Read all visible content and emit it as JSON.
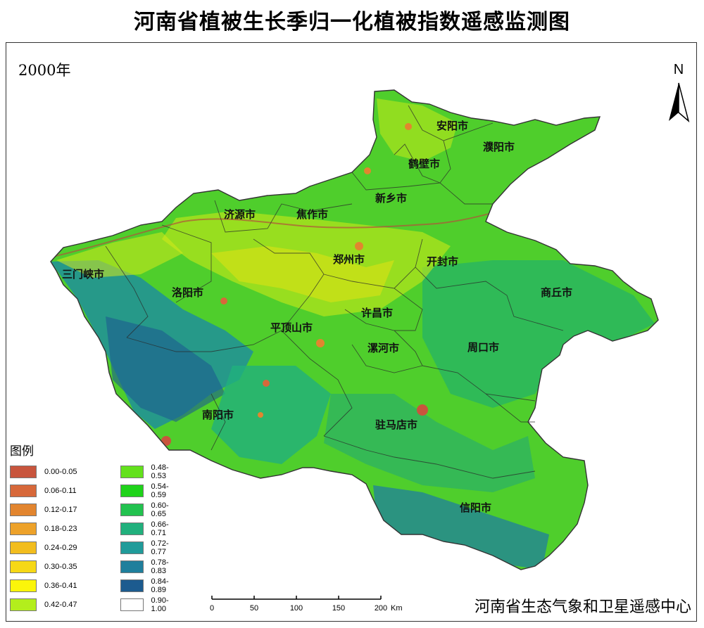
{
  "title": "河南省植被生长季归一化植被指数遥感监测图",
  "year_label": "2000年",
  "north_label": "N",
  "credit": "河南省生态气象和卫星遥感中心",
  "legend": {
    "title": "图例",
    "items": [
      {
        "label": "0.00-0.05",
        "color": "#c8553d"
      },
      {
        "label": "0.06-0.11",
        "color": "#d7683a"
      },
      {
        "label": "0.12-0.17",
        "color": "#e2852f"
      },
      {
        "label": "0.18-0.23",
        "color": "#eda22a"
      },
      {
        "label": "0.24-0.29",
        "color": "#f2bd1e"
      },
      {
        "label": "0.30-0.35",
        "color": "#f6d816"
      },
      {
        "label": "0.36-0.41",
        "color": "#fbf50a"
      },
      {
        "label": "0.42-0.47",
        "color": "#b3ee1c"
      },
      {
        "label": "0.48-0.53",
        "color": "#63e11c"
      },
      {
        "label": "0.54-0.59",
        "color": "#1fd31a"
      },
      {
        "label": "0.60-0.65",
        "color": "#22c24f"
      },
      {
        "label": "0.66-0.71",
        "color": "#21b07d"
      },
      {
        "label": "0.72-0.77",
        "color": "#209b9a"
      },
      {
        "label": "0.78-0.83",
        "color": "#1f7f9c"
      },
      {
        "label": "0.84-0.89",
        "color": "#1c5b8f"
      },
      {
        "label": "0.90-1.00",
        "color": "#ffffff"
      }
    ]
  },
  "scale": {
    "ticks": [
      "0",
      "50",
      "100",
      "150",
      "200"
    ],
    "unit": "Km"
  },
  "cities": [
    {
      "name": "安阳市",
      "id": "anyang"
    },
    {
      "name": "濮阳市",
      "id": "puyang"
    },
    {
      "name": "鹤壁市",
      "id": "hebi"
    },
    {
      "name": "新乡市",
      "id": "xinxiang"
    },
    {
      "name": "济源市",
      "id": "jiyuan"
    },
    {
      "name": "焦作市",
      "id": "jiaozuo"
    },
    {
      "name": "郑州市",
      "id": "zhengzhou"
    },
    {
      "name": "开封市",
      "id": "kaifeng"
    },
    {
      "name": "三门峡市",
      "id": "sanmenxia"
    },
    {
      "name": "洛阳市",
      "id": "luoyang"
    },
    {
      "name": "商丘市",
      "id": "shangqiu"
    },
    {
      "name": "许昌市",
      "id": "xuchang"
    },
    {
      "name": "平顶山市",
      "id": "pingdingshan"
    },
    {
      "name": "漯河市",
      "id": "luohe"
    },
    {
      "name": "周口市",
      "id": "zhoukou"
    },
    {
      "name": "南阳市",
      "id": "nanyang"
    },
    {
      "name": "驻马店市",
      "id": "zhumadian"
    },
    {
      "name": "信阳市",
      "id": "xinyang"
    }
  ]
}
